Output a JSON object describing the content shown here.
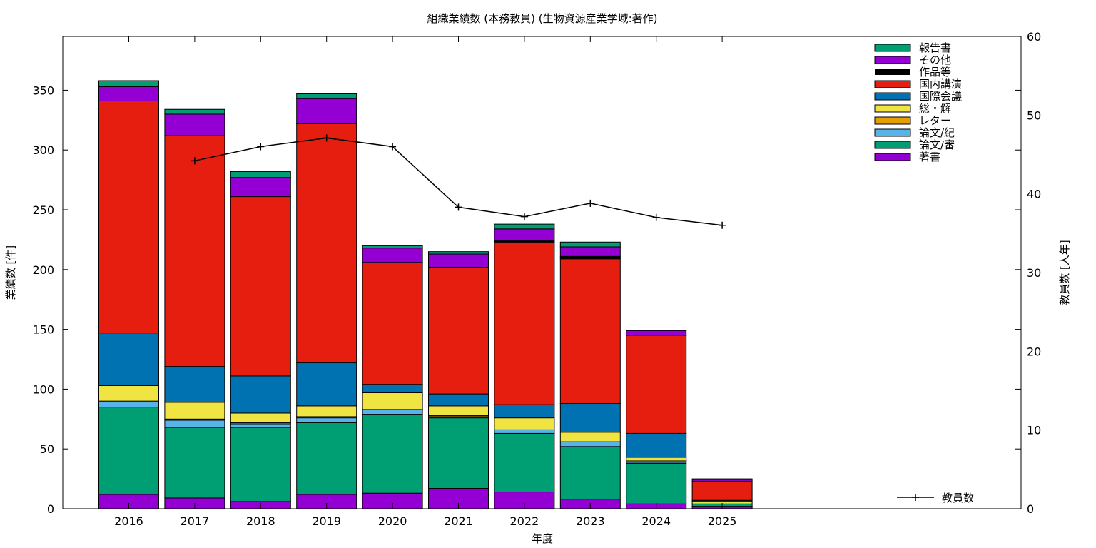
{
  "chart_data": {
    "type": "bar",
    "stacked": true,
    "title": "組織業績数 (本務教員) (生物資源産業学域:著作)",
    "xlabel": "年度",
    "ylabel": "業績数 [件]",
    "y2label": "教員数 [人年]",
    "categories": [
      "2016",
      "2017",
      "2018",
      "2019",
      "2020",
      "2021",
      "2022",
      "2023",
      "2024",
      "2025"
    ],
    "ylim": [
      0,
      395
    ],
    "y2lim": [
      0,
      60
    ],
    "yticks": [
      0,
      50,
      100,
      150,
      200,
      250,
      300,
      350
    ],
    "y2ticks": [
      0,
      10,
      20,
      30,
      40,
      50,
      60
    ],
    "legend_position": "top-right",
    "grid": false,
    "series": [
      {
        "name": "著書",
        "color": "#9400d3",
        "values": [
          12,
          9,
          6,
          12,
          13,
          17,
          14,
          8,
          4,
          2
        ]
      },
      {
        "name": "論文/審",
        "color": "#009e73",
        "values": [
          73,
          59,
          62,
          60,
          66,
          59,
          49,
          44,
          34,
          2
        ]
      },
      {
        "name": "論文/紀",
        "color": "#56b4e9",
        "values": [
          5,
          6,
          3,
          4,
          4,
          1,
          3,
          4,
          1,
          0
        ]
      },
      {
        "name": "レター",
        "color": "#e69f00",
        "values": [
          0,
          1,
          1,
          1,
          0,
          1,
          0,
          0,
          1,
          0
        ]
      },
      {
        "name": "総・解",
        "color": "#f0e442",
        "values": [
          13,
          14,
          8,
          9,
          14,
          8,
          10,
          8,
          3,
          2
        ]
      },
      {
        "name": "国際会議",
        "color": "#0072b2",
        "values": [
          44,
          30,
          31,
          36,
          7,
          10,
          11,
          24,
          20,
          1
        ]
      },
      {
        "name": "国内講演",
        "color": "#e51e10",
        "values": [
          194,
          193,
          150,
          200,
          102,
          106,
          136,
          121,
          82,
          16
        ]
      },
      {
        "name": "作品等",
        "color": "#000000",
        "values": [
          0,
          0,
          0,
          0,
          0,
          0,
          1,
          2,
          0,
          0
        ]
      },
      {
        "name": "その他",
        "color": "#9400d3",
        "values": [
          12,
          18,
          16,
          21,
          12,
          11,
          10,
          8,
          4,
          2
        ]
      },
      {
        "name": "報告書",
        "color": "#009e73",
        "values": [
          5,
          4,
          5,
          4,
          2,
          2,
          4,
          4,
          0,
          0
        ]
      }
    ],
    "line_series": {
      "name": "教員数",
      "color": "#000000",
      "axis": "y2",
      "categories": [
        "2017",
        "2018",
        "2019",
        "2020",
        "2021",
        "2022",
        "2023",
        "2024",
        "2025"
      ],
      "values": [
        44.2,
        46.0,
        47.1,
        46.0,
        38.3,
        37.1,
        38.8,
        37.0,
        36.0
      ]
    }
  }
}
